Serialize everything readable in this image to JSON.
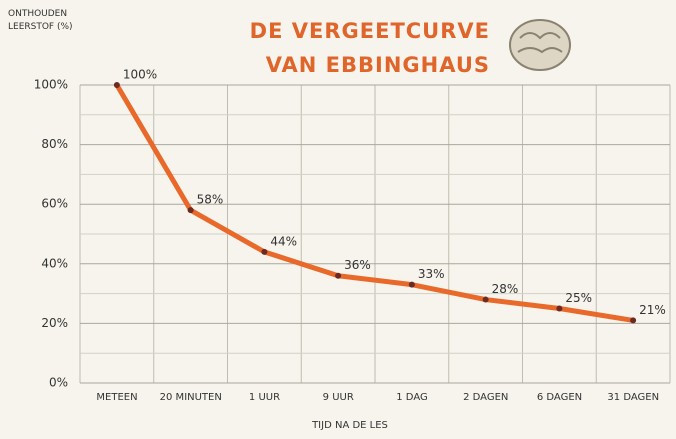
{
  "chart_data": {
    "type": "line",
    "title": "DE VERGEETCURVE VAN EBBINGHAUS",
    "ylabel": "ONTHOUDEN LEERSTOF (%)",
    "xlabel": "TIJD NA DE LES",
    "categories": [
      "METEEN",
      "20 MINUTEN",
      "1 UUR",
      "9 UUR",
      "1 DAG",
      "2 DAGEN",
      "6 DAGEN",
      "31 DAGEN"
    ],
    "values": [
      100,
      58,
      44,
      36,
      33,
      28,
      25,
      21
    ],
    "value_labels": [
      "100%",
      "58%",
      "44%",
      "36%",
      "33%",
      "28%",
      "25%",
      "21%"
    ],
    "color": "#e8692a",
    "ylim": [
      0,
      100
    ],
    "yticks": [
      {
        "value": 0,
        "label": "0%"
      },
      {
        "value": 20,
        "label": "20%"
      },
      {
        "value": 40,
        "label": "40%"
      },
      {
        "value": 60,
        "label": "60%"
      },
      {
        "value": 80,
        "label": "80%"
      },
      {
        "value": 100,
        "label": "100%"
      }
    ],
    "grid": true
  }
}
